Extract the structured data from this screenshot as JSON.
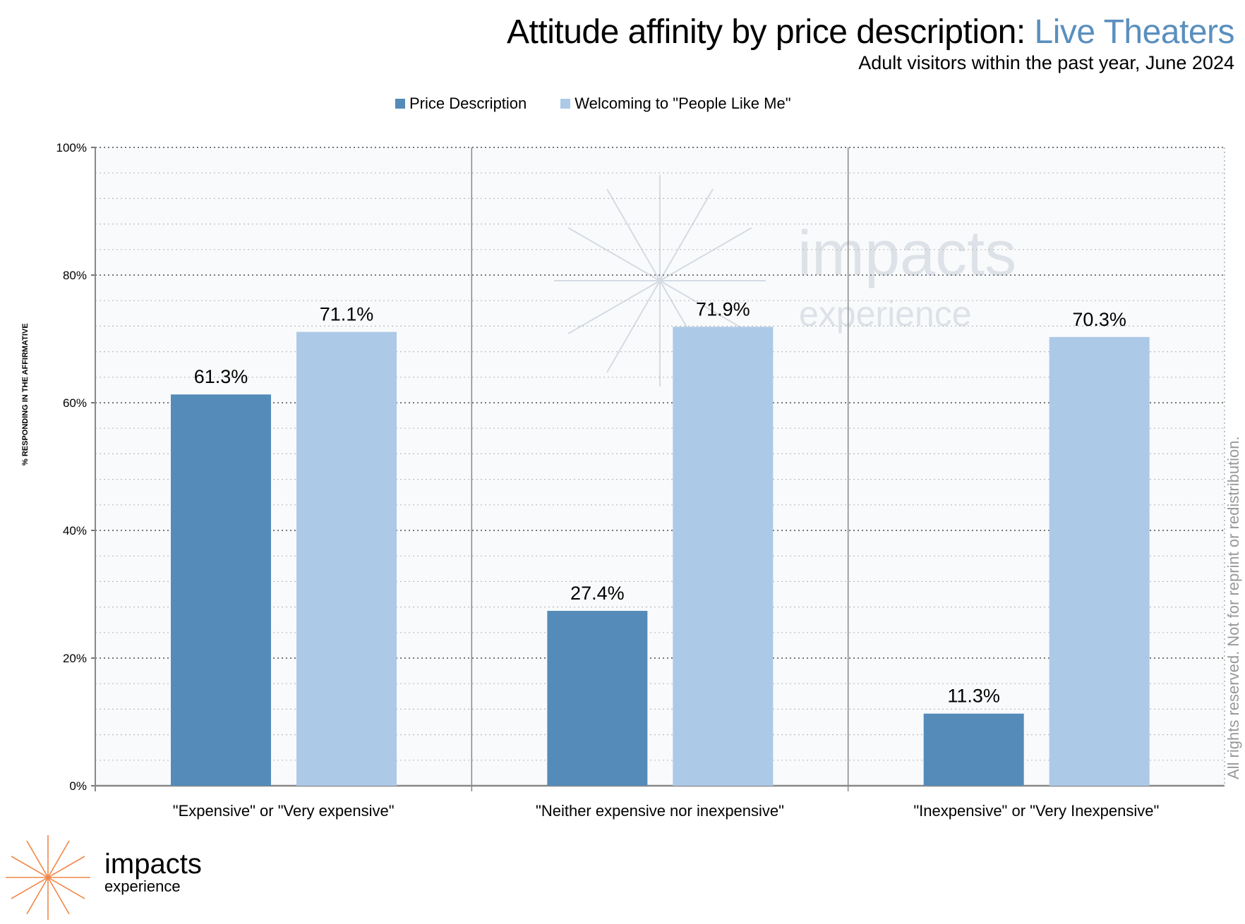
{
  "chart_data": {
    "type": "bar",
    "title": "Attitude affinity by price description:",
    "title_highlight": "Live Theaters",
    "subtitle": "Adult visitors within the past year, June 2024",
    "ylabel": "% RESPONDING IN THE AFFIRMATIVE",
    "ylim": [
      0,
      100
    ],
    "yticks": [
      "0%",
      "20%",
      "40%",
      "60%",
      "80%",
      "100%"
    ],
    "categories": [
      "\"Expensive\" or \"Very expensive\"",
      "\"Neither expensive nor inexpensive\"",
      "\"Inexpensive\" or \"Very Inexpensive\""
    ],
    "series": [
      {
        "name": "Price Description",
        "color": "#558bb9",
        "values": [
          61.3,
          27.4,
          11.3
        ],
        "labels": [
          "61.3%",
          "27.4%",
          "11.3%"
        ]
      },
      {
        "name": "Welcoming to \"People Like Me\"",
        "color": "#adc9e8",
        "values": [
          71.1,
          71.9,
          70.3
        ],
        "labels": [
          "71.1%",
          "71.9%",
          "70.3%"
        ]
      }
    ],
    "legend": "top-center",
    "grid": true
  },
  "footer": {
    "rights": "All rights reserved. Not for reprint or redistribution.",
    "logo_main": "impacts",
    "logo_sub": "experience"
  }
}
